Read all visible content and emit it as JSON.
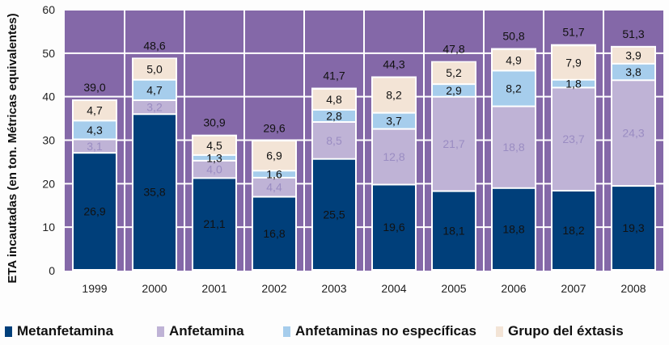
{
  "chart_data": {
    "type": "bar",
    "stacked": true,
    "title": "",
    "xlabel": "",
    "ylabel": "ETA incautadas (en ton. Métricas equivalentes)",
    "ylim": [
      0,
      60
    ],
    "yticks": [
      0,
      10,
      20,
      30,
      40,
      50,
      60
    ],
    "grid": true,
    "legend_position": "bottom",
    "categories": [
      "1999",
      "2000",
      "2001",
      "2002",
      "2003",
      "2004",
      "2005",
      "2006",
      "2007",
      "2008"
    ],
    "series": [
      {
        "name": "Metanfetamina",
        "color": "#003f7a",
        "label_color": "#111111",
        "values": [
          26.9,
          35.8,
          21.1,
          16.8,
          25.5,
          19.6,
          18.1,
          18.8,
          18.2,
          19.3
        ],
        "labels": [
          "26,9",
          "35,8",
          "21,1",
          "16,8",
          "25,5",
          "19,6",
          "18,1",
          "18,8",
          "18,2",
          "19,3"
        ]
      },
      {
        "name": "Anfetamina",
        "color": "#bfb3d6",
        "label_color": "#9a8cc2",
        "values": [
          3.1,
          3.2,
          4.0,
          4.4,
          8.5,
          12.8,
          21.7,
          18.8,
          23.7,
          24.3
        ],
        "labels": [
          "3,1",
          "3,2",
          "4,0",
          "4,4",
          "8,5",
          "12,8",
          "21,7",
          "18,8",
          "23,7",
          "24,3"
        ]
      },
      {
        "name": "Anfetaminas no específicas",
        "color": "#a6cdec",
        "label_color": "#111111",
        "values": [
          4.3,
          4.7,
          1.3,
          1.6,
          2.8,
          3.7,
          2.9,
          8.2,
          1.8,
          3.8
        ],
        "labels": [
          "4,3",
          "4,7",
          "1,3",
          "1,6",
          "2,8",
          "3,7",
          "2,9",
          "8,2",
          "1,8",
          "3,8"
        ]
      },
      {
        "name": "Grupo del éxtasis",
        "color": "#f3e4d6",
        "label_color": "#111111",
        "values": [
          4.7,
          5.0,
          4.5,
          6.9,
          4.8,
          8.2,
          5.2,
          4.9,
          7.9,
          3.9
        ],
        "labels": [
          "4,7",
          "5,0",
          "4,5",
          "6,9",
          "4,8",
          "8,2",
          "5,2",
          "4,9",
          "7,9",
          "3,9"
        ]
      }
    ],
    "totals": [
      39.0,
      48.6,
      30.9,
      29.6,
      41.7,
      44.3,
      47.8,
      50.8,
      51.7,
      51.3
    ],
    "total_labels": [
      "39,0",
      "48,6",
      "30,9",
      "29,6",
      "41,7",
      "44,3",
      "47,8",
      "50,8",
      "51,7",
      "51,3"
    ],
    "plot_background": "#8468a8",
    "grid_color": "#ffffff"
  }
}
